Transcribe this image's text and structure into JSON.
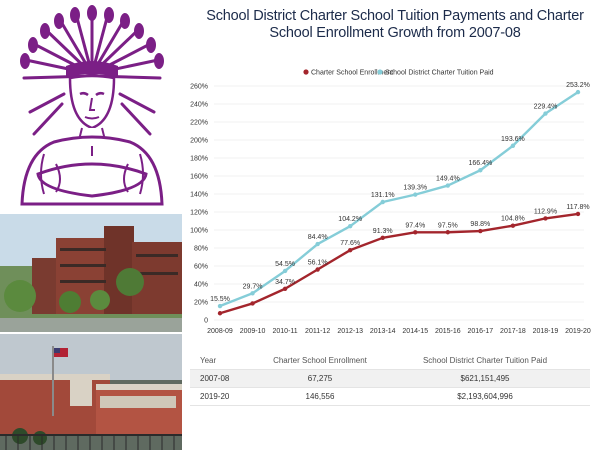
{
  "title": "School District Charter School Tuition Payments and Charter School Enrollment Growth from 2007-08",
  "chart_data": {
    "type": "line",
    "title": "School District Charter School Tuition Payments and Charter School Enrollment Growth from 2007-08",
    "categories": [
      "2008-09",
      "2009-10",
      "2010-11",
      "2011-12",
      "2012-13",
      "2013-14",
      "2014-15",
      "2015-16",
      "2016-17",
      "2017-18",
      "2018-19",
      "2019-20"
    ],
    "yticks": [
      "0",
      "20%",
      "40%",
      "60%",
      "80%",
      "100%",
      "120%",
      "140%",
      "160%",
      "180%",
      "200%",
      "220%",
      "240%",
      "260%"
    ],
    "ylim": [
      0,
      260
    ],
    "legend_position": "top",
    "series": [
      {
        "name": "Charter School Enrollment",
        "color": "#a3252c",
        "values": [
          7.5,
          18.4,
          34.7,
          56.1,
          77.6,
          91.3,
          97.4,
          97.5,
          98.8,
          104.8,
          112.9,
          117.8
        ],
        "labels": [
          "",
          "",
          "34.7%",
          "56.1%",
          "77.6%",
          "91.3%",
          "97.4%",
          "97.5%",
          "98.8%",
          "104.8%",
          "112.9%",
          "117.8%"
        ]
      },
      {
        "name": "School District Charter Tuition Paid",
        "color": "#85cdd8",
        "values": [
          15.5,
          29.7,
          54.5,
          84.4,
          104.2,
          131.1,
          139.3,
          149.4,
          166.4,
          193.6,
          229.4,
          253.2
        ],
        "labels": [
          "15.5%",
          "29.7%",
          "54.5%",
          "84.4%",
          "104.2%",
          "131.1%",
          "139.3%",
          "149.4%",
          "166.4%",
          "193.6%",
          "229.4%",
          "253.2%"
        ]
      }
    ]
  },
  "table": {
    "headers": [
      "Year",
      "Charter School Enrollment",
      "School District Charter Tuition Paid"
    ],
    "rows": [
      [
        "2007-08",
        "67,275",
        "$621,151,495"
      ],
      [
        "2019-20",
        "146,556",
        "$2,193,604,996"
      ]
    ]
  },
  "colors": {
    "logo": "#7b1f86",
    "title": "#1c2b4a"
  }
}
